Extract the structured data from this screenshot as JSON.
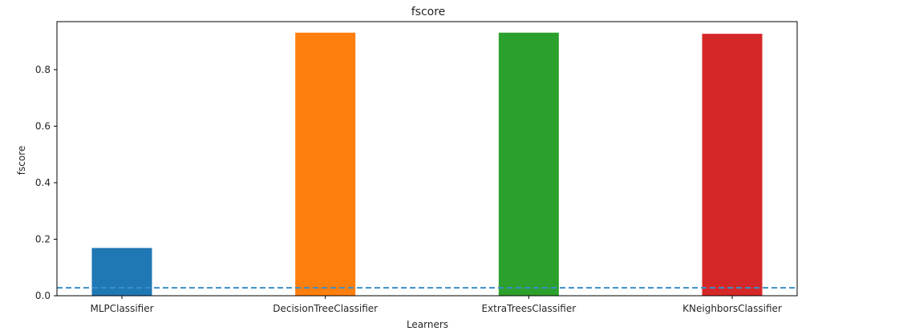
{
  "chart_data": {
    "type": "bar",
    "title": "fscore",
    "xlabel": "Learners",
    "ylabel": "fscore",
    "categories": [
      "MLPClassifier",
      "DecisionTreeClassifier",
      "ExtraTreesClassifier",
      "KNeighborsClassifier"
    ],
    "values": [
      0.169,
      0.931,
      0.931,
      0.927
    ],
    "colors": [
      "#1f77b4",
      "#ff7f0e",
      "#2ca02c",
      "#d62728"
    ],
    "ylim": [
      0,
      0.97
    ],
    "yticks": [
      0.0,
      0.2,
      0.4,
      0.6,
      0.8
    ],
    "ytick_labels": [
      "0.0",
      "0.2",
      "0.4",
      "0.6",
      "0.8"
    ],
    "reference_line": {
      "value": 0.028,
      "style": "dashed",
      "color": "#3a8fc9"
    },
    "grid": false,
    "legend": "none"
  }
}
